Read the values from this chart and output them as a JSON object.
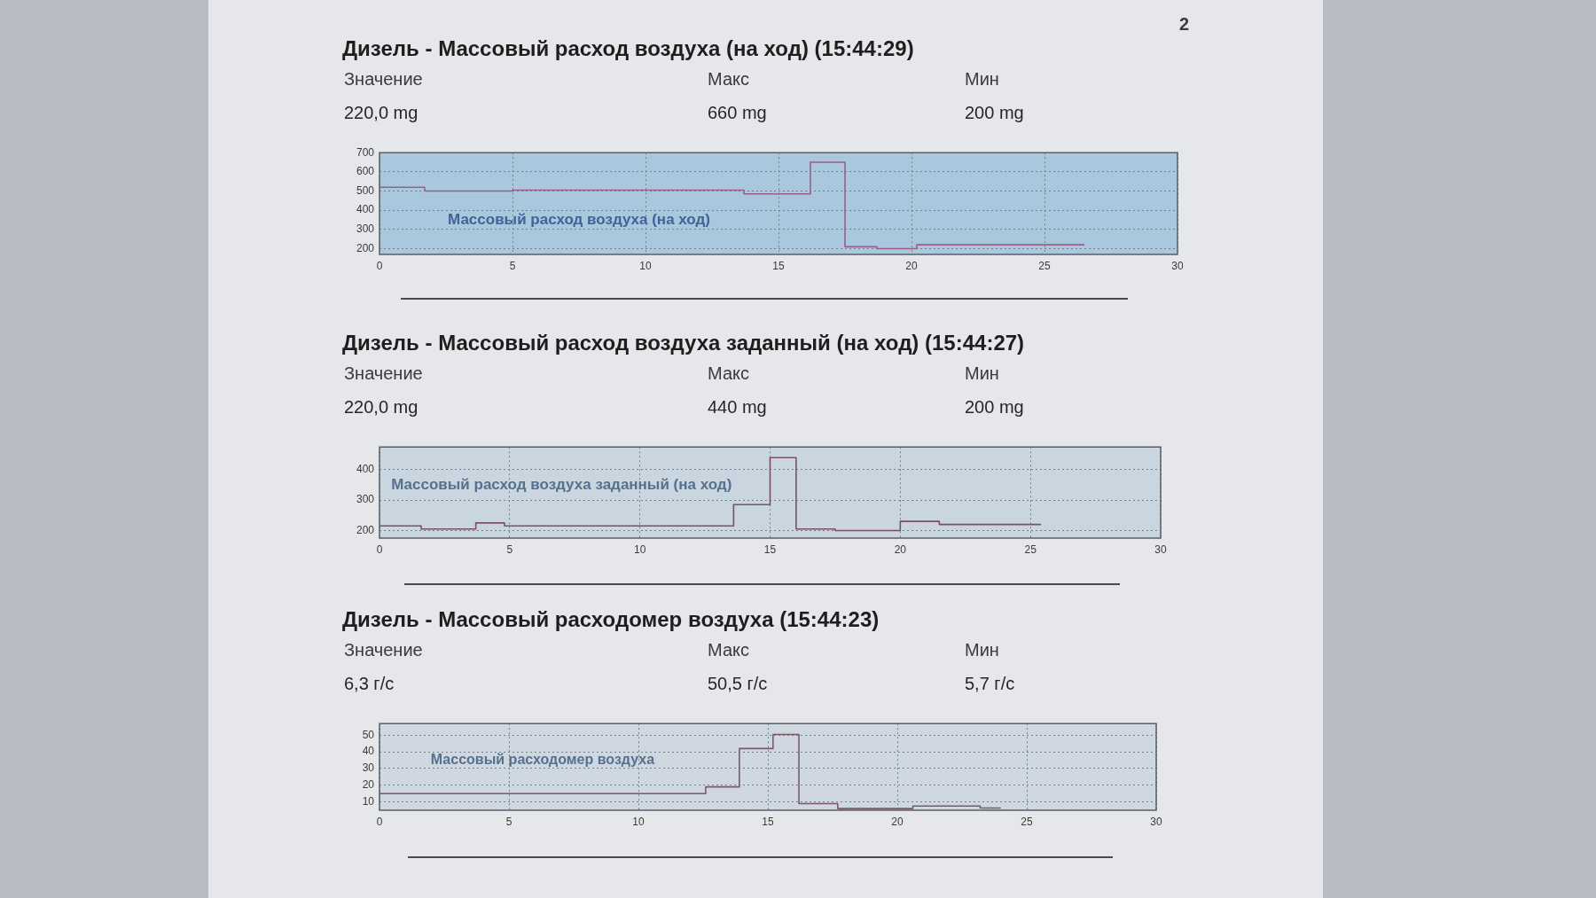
{
  "chart_data": [
    {
      "type": "step",
      "title": "Дизель - Массовый расход воздуха (на ход) (15:44:29)",
      "annotations": [
        "Значение",
        "220,0 mg",
        "Макс",
        "660 mg",
        "Мин",
        "200 mg",
        "2"
      ],
      "x": [
        0,
        1.7,
        5,
        13.7,
        16.2,
        17.5,
        18.7,
        20.2,
        26.5
      ],
      "series": [
        {
          "name": "Массовый расход воздуха (на ход)",
          "color": "#9a5f86",
          "values": [
            520,
            500,
            505,
            485,
            650,
            210,
            200,
            220,
            220
          ]
        }
      ],
      "xlim": [
        0,
        30
      ],
      "xticks": [
        0,
        5,
        10,
        15,
        20,
        25,
        30
      ],
      "ylim": [
        170,
        700
      ],
      "yticks": [
        200,
        300,
        400,
        500,
        600,
        700
      ],
      "grid": true
    },
    {
      "type": "step",
      "title": "Дизель - Массовый расход воздуха заданный (на ход) (15:44:27)",
      "annotations": [
        "Значение",
        "220,0 mg",
        "Макс",
        "440 mg",
        "Мин",
        "200 mg"
      ],
      "x": [
        0,
        1.6,
        3.7,
        4.8,
        13.6,
        15.0,
        16.0,
        17.5,
        20.0,
        21.5,
        25.4
      ],
      "series": [
        {
          "name": "Массовый расход воздуха заданный (на ход)",
          "color": "#7d4f62",
          "values": [
            215,
            205,
            225,
            215,
            285,
            440,
            205,
            200,
            230,
            220,
            220
          ]
        }
      ],
      "xlim": [
        0,
        30
      ],
      "xticks": [
        0,
        5,
        10,
        15,
        20,
        25,
        30
      ],
      "ylim": [
        175,
        475
      ],
      "yticks": [
        200,
        300,
        400
      ],
      "grid": true
    },
    {
      "type": "step",
      "title": "Дизель - Массовый расходомер воздуха (15:44:23)",
      "annotations": [
        "Значение",
        "6,3 г/с",
        "Макс",
        "50,5 г/с",
        "Мин",
        "5,7 г/с"
      ],
      "x": [
        0,
        12.6,
        13.9,
        15.2,
        16.2,
        17.7,
        20.6,
        23.2,
        24.0
      ],
      "series": [
        {
          "name": "Массовый расходомер воздуха",
          "color": "#7a5a66",
          "values": [
            15,
            19,
            42,
            50.5,
            9,
            6,
            7.5,
            6.3,
            6.3
          ]
        }
      ],
      "xlim": [
        0,
        30
      ],
      "xticks": [
        0,
        5,
        10,
        15,
        20,
        25,
        30
      ],
      "ylim": [
        5,
        57
      ],
      "yticks": [
        10,
        20,
        30,
        40,
        50
      ],
      "grid": true
    }
  ]
}
